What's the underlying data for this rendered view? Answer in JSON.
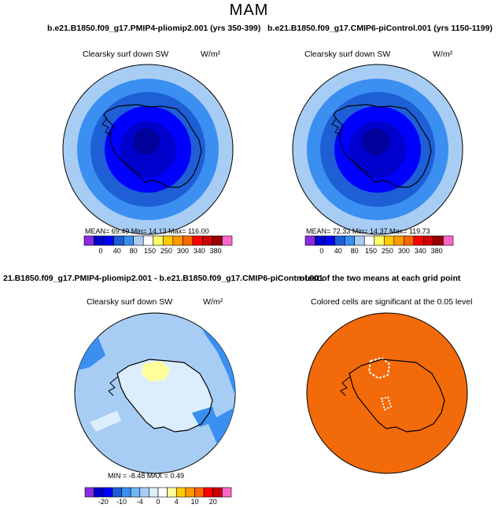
{
  "page": {
    "title": "MAM"
  },
  "colors": {
    "ocean_fill": "#f36a0a",
    "white": "#ffffff",
    "coast": "#000000"
  },
  "chart_data": [
    {
      "type": "polar-contour-map",
      "title": "b.e21.B1850.f09_g17.PMIP4-pliomip2.001 (yrs 350-399)",
      "variable": "Clearsky surf down SW",
      "units": "W/m²",
      "stats_text": "MEAN=   69.49   Min=   14.13   Max=  116.00",
      "stats": {
        "mean": 69.49,
        "min": 14.13,
        "max": 116.0
      },
      "colorbar": {
        "colors": [
          "#8a2be2",
          "#0000cc",
          "#0000ff",
          "#1e5fd6",
          "#3a8ff0",
          "#a8cdf5",
          "#ffffff",
          "#ffff66",
          "#ffcc00",
          "#ff9900",
          "#ff6600",
          "#ff0000",
          "#cc0000",
          "#990000",
          "#ff66cc"
        ],
        "tick_labels": [
          "0",
          "40",
          "80",
          "150",
          "250",
          "300",
          "340",
          "380"
        ]
      }
    },
    {
      "type": "polar-contour-map",
      "title": "b.e21.B1850.f09_g17.CMIP6-piControl.001 (yrs 1150-1199)",
      "variable": "Clearsky surf down SW",
      "units": "W/m²",
      "stats_text": "MEAN=   72.33   Min=   14.37   Max=  119.73",
      "stats": {
        "mean": 72.33,
        "min": 14.37,
        "max": 119.73
      },
      "colorbar": {
        "colors": [
          "#8a2be2",
          "#0000cc",
          "#0000ff",
          "#1e5fd6",
          "#3a8ff0",
          "#a8cdf5",
          "#ffffff",
          "#ffff66",
          "#ffcc00",
          "#ff9900",
          "#ff6600",
          "#ff0000",
          "#cc0000",
          "#990000",
          "#ff66cc"
        ],
        "tick_labels": [
          "0",
          "40",
          "80",
          "150",
          "250",
          "300",
          "340",
          "380"
        ]
      }
    },
    {
      "type": "polar-contour-map",
      "title": "21.B1850.f09_g17.PMIP4-pliomip2.001 - b.e21.B1850.f09_g17.CMIP6-piControl.001",
      "variable": "Clearsky surf down SW",
      "units": "W/m²",
      "stats_text": "MIN =   -8.48  MAX =    0.49",
      "stats": {
        "min": -8.48,
        "max": 0.49
      },
      "colorbar": {
        "colors": [
          "#8a2be2",
          "#0000cc",
          "#0000ff",
          "#1e5fd6",
          "#3a8ff0",
          "#6fb6f5",
          "#a8cdf5",
          "#dceefe",
          "#ffffff",
          "#ffff99",
          "#ffcc00",
          "#ff9900",
          "#ff6600",
          "#ff0000",
          "#cc0000",
          "#ff66cc"
        ],
        "tick_labels": [
          "-20",
          "-10",
          "-4",
          "0",
          "4",
          "10",
          "20"
        ]
      }
    },
    {
      "type": "polar-significance-map",
      "title": "r-test of the two means at each grid point",
      "subtitle": "Colored cells are significant at the 0.05 level"
    }
  ]
}
